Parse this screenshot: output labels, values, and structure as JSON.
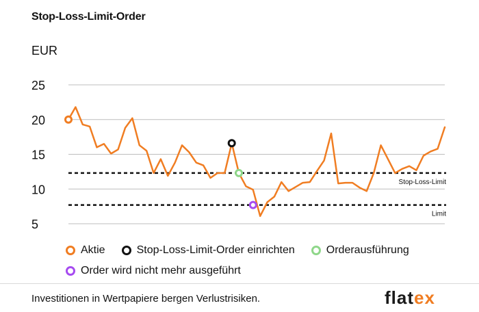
{
  "chart_data": {
    "type": "line",
    "title": "Stop-Loss-Limit-Order",
    "ylabel": "EUR",
    "ylim": [
      5,
      25
    ],
    "yticks": [
      5,
      10,
      15,
      20,
      25
    ],
    "grid": true,
    "series": [
      {
        "name": "Aktie",
        "color": "#f07d22",
        "x": [
          0,
          1,
          2,
          3,
          4,
          5,
          6,
          7,
          8,
          9,
          10,
          11,
          12,
          13,
          14,
          15,
          16,
          17,
          18,
          19,
          20,
          21,
          22,
          23,
          24,
          25,
          26,
          27,
          28,
          29,
          30,
          31,
          32,
          33,
          34,
          35,
          36,
          37,
          38,
          39,
          40,
          41,
          42,
          43,
          44,
          45,
          46,
          47,
          48,
          49,
          50,
          51,
          52,
          53,
          54,
          55,
          56,
          57,
          58,
          59,
          60,
          61,
          62,
          63,
          64,
          65,
          66,
          67,
          68,
          69,
          70,
          71,
          72,
          73,
          74,
          75,
          76,
          77,
          78,
          79
        ],
        "values": [
          20.0,
          21.8,
          19.3,
          19.0,
          16.0,
          16.5,
          15.1,
          15.7,
          18.8,
          20.2,
          16.3,
          15.5,
          12.3,
          14.3,
          11.9,
          13.8,
          16.3,
          15.3,
          13.8,
          13.4,
          11.6,
          12.3,
          12.3,
          16.6,
          12.3,
          10.4,
          9.9,
          6.1,
          8.1,
          8.9,
          11.0,
          9.7,
          10.3,
          10.9,
          11.0,
          12.6,
          14.1,
          18.0,
          10.8,
          10.9,
          10.9,
          10.2,
          9.7,
          12.3,
          16.3,
          14.3,
          12.3,
          12.9,
          13.3,
          12.7,
          14.8,
          15.4,
          15.8,
          18.9,
          18.9,
          18.9,
          18.9,
          18.9,
          18.9,
          18.9,
          18.9,
          18.9,
          18.9,
          18.9,
          18.9,
          18.9,
          18.9,
          18.9,
          18.9,
          18.9,
          18.9,
          18.9,
          18.9,
          18.9,
          18.9,
          18.9,
          18.9,
          18.9,
          18.9,
          18.9
        ]
      }
    ],
    "reference_lines": [
      {
        "name": "Stop-Loss-Limit",
        "value": 12.3
      },
      {
        "name": "Limit",
        "value": 7.7
      }
    ],
    "markers": [
      {
        "name": "Aktie",
        "color": "#f07d22",
        "x": 0,
        "y": 20.0
      },
      {
        "name": "Stop-Loss-Limit-Order einrichten",
        "color": "#111111",
        "x": 23,
        "y": 16.6
      },
      {
        "name": "Orderausführung",
        "color": "#8fd78a",
        "x": 24,
        "y": 12.3
      },
      {
        "name": "Order wird nicht mehr ausgeführt",
        "color": "#a64bf0",
        "x": 26,
        "y": 7.7
      }
    ]
  },
  "legend": {
    "items": [
      {
        "label": "Aktie",
        "color": "#f07d22"
      },
      {
        "label": "Stop-Loss-Limit-Order einrichten",
        "color": "#111111"
      },
      {
        "label": "Orderausführung",
        "color": "#8fd78a"
      },
      {
        "label": "Order wird nicht mehr ausgeführt",
        "color": "#a64bf0"
      }
    ]
  },
  "footer": {
    "disclaimer": "Investitionen in Wertpapiere bergen Verlustrisiken.",
    "logo_prefix": "flat",
    "logo_x": "ex"
  }
}
